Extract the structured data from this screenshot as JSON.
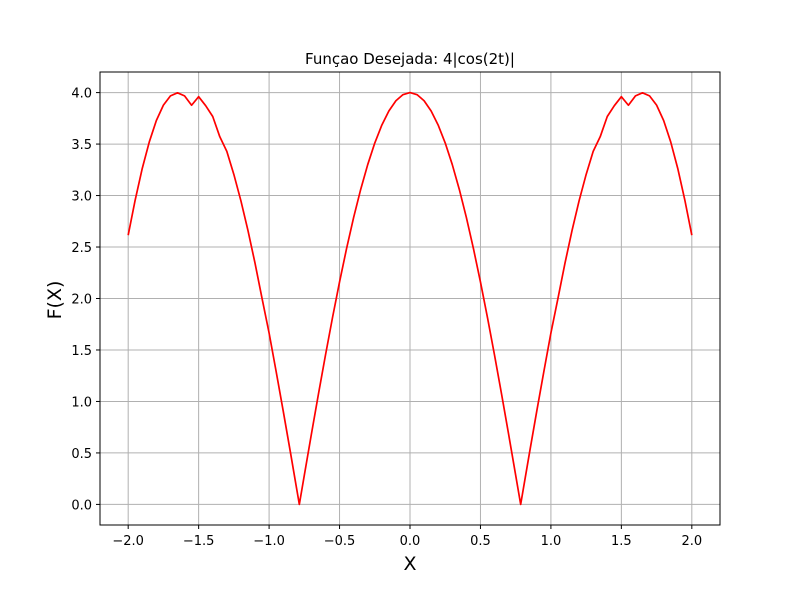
{
  "chart_data": {
    "type": "line",
    "title": "Funçao Desejada:  4|cos(2t)|",
    "xlabel": "X",
    "ylabel": "F(X)",
    "xlim": [
      -2.2,
      2.2
    ],
    "ylim": [
      -0.2,
      4.2
    ],
    "grid": true,
    "x_ticks": [
      -2.0,
      -1.5,
      -1.0,
      -0.5,
      0.0,
      0.5,
      1.0,
      1.5,
      2.0
    ],
    "x_tick_labels": [
      "−2.0",
      "−1.5",
      "−1.0",
      "−0.5",
      "0.0",
      "0.5",
      "1.0",
      "1.5",
      "2.0"
    ],
    "y_ticks": [
      0.0,
      0.5,
      1.0,
      1.5,
      2.0,
      2.5,
      3.0,
      3.5,
      4.0
    ],
    "y_tick_labels": [
      "0.0",
      "0.5",
      "1.0",
      "1.5",
      "2.0",
      "2.5",
      "3.0",
      "3.5",
      "4.0"
    ],
    "colors": {
      "line": "#ff0000",
      "grid": "#b0b0b0",
      "axes": "#000000"
    },
    "series": [
      {
        "x": [
          -2.0,
          -1.95,
          -1.9,
          -1.85,
          -1.8,
          -1.75,
          -1.7,
          -1.65,
          -1.6,
          -1.55,
          -1.5,
          -1.45,
          -1.4,
          -1.35,
          -1.3,
          -1.25,
          -1.2,
          -1.15,
          -1.1,
          -1.05,
          -1.0,
          -0.95,
          -0.9,
          -0.85,
          -0.8,
          -0.7854,
          -0.75,
          -0.7,
          -0.65,
          -0.6,
          -0.55,
          -0.5,
          -0.45,
          -0.4,
          -0.35,
          -0.3,
          -0.25,
          -0.2,
          -0.15,
          -0.1,
          -0.05,
          0.0,
          0.05,
          0.1,
          0.15,
          0.2,
          0.25,
          0.3,
          0.35,
          0.4,
          0.45,
          0.5,
          0.55,
          0.6,
          0.65,
          0.7,
          0.75,
          0.7854,
          0.8,
          0.85,
          0.9,
          0.95,
          1.0,
          1.05,
          1.1,
          1.15,
          1.2,
          1.25,
          1.3,
          1.35,
          1.4,
          1.45,
          1.5,
          1.55,
          1.6,
          1.65,
          1.7,
          1.75,
          1.8,
          1.85,
          1.9,
          1.95,
          2.0
        ],
        "y": [
          2.615,
          2.959,
          3.264,
          3.522,
          3.729,
          3.878,
          3.968,
          3.998,
          3.968,
          3.877,
          3.96,
          3.873,
          3.768,
          3.572,
          3.429,
          3.205,
          2.949,
          2.661,
          2.344,
          2.001,
          1.665,
          1.291,
          0.909,
          0.517,
          0.117,
          0.0,
          0.283,
          0.68,
          1.07,
          1.449,
          1.814,
          2.161,
          2.486,
          2.787,
          3.059,
          3.301,
          3.51,
          3.684,
          3.821,
          3.921,
          3.98,
          4.0,
          3.98,
          3.921,
          3.821,
          3.684,
          3.51,
          3.301,
          3.059,
          2.787,
          2.486,
          2.161,
          1.814,
          1.449,
          1.07,
          0.68,
          0.283,
          0.0,
          0.117,
          0.517,
          0.909,
          1.291,
          1.665,
          2.001,
          2.344,
          2.661,
          2.949,
          3.205,
          3.429,
          3.572,
          3.768,
          3.873,
          3.96,
          3.877,
          3.968,
          3.998,
          3.968,
          3.878,
          3.729,
          3.522,
          3.264,
          2.959,
          2.615
        ]
      }
    ]
  }
}
